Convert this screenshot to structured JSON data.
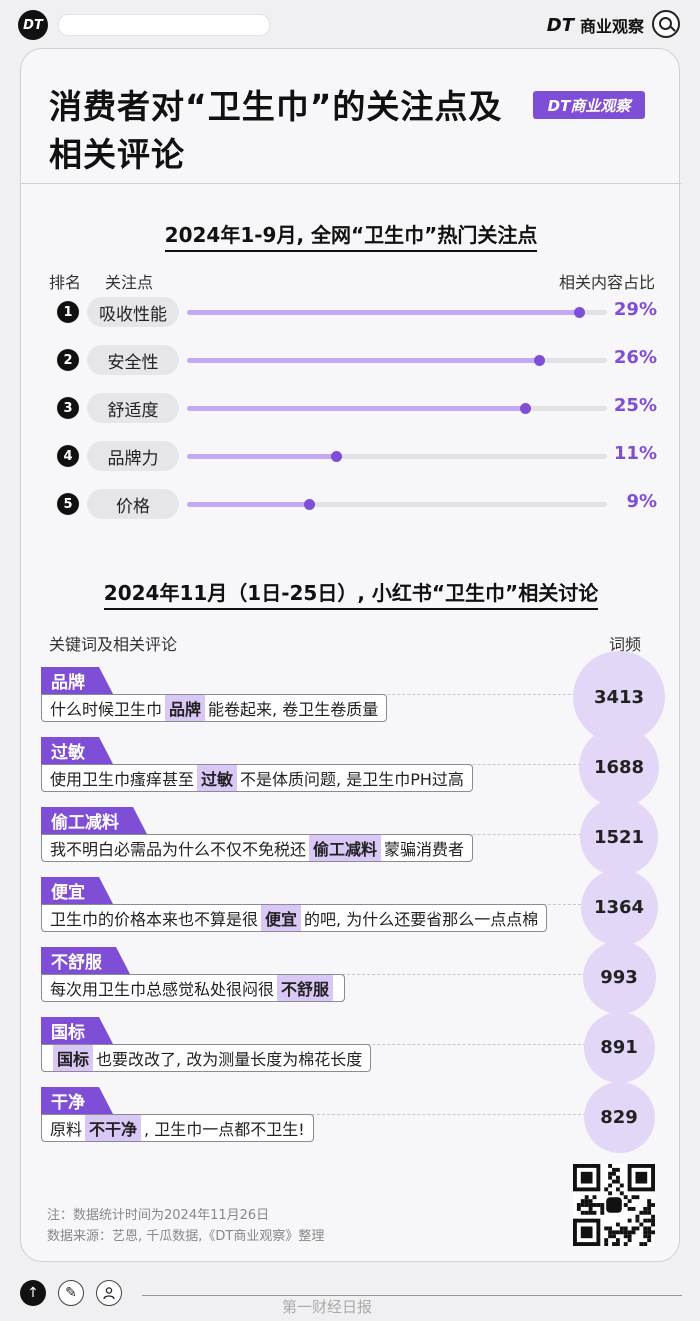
{
  "topbar": {
    "logo": "DT",
    "brand_dt": "DT",
    "brand_name": "商业观察"
  },
  "title": "消费者对“卫生巾”的关注点及相关评论",
  "badge": "DT商业观察",
  "section1": {
    "title": "2024年1-9月, 全网“卫生巾”热门关注点",
    "col_rank": "排名",
    "col_focus": "关注点",
    "col_share": "相关内容占比"
  },
  "section2": {
    "title": "2024年11月（1日-25日）, 小红书“卫生巾”相关讨论",
    "col_keyword": "关键词及相关评论",
    "col_freq": "词频"
  },
  "chart_data": [
    {
      "type": "bar",
      "title": "2024年1-9月, 全网“卫生巾”热门关注点",
      "categories": [
        "吸收性能",
        "安全性",
        "舒适度",
        "品牌力",
        "价格"
      ],
      "ranks": [
        "1",
        "2",
        "3",
        "4",
        "5"
      ],
      "values": [
        29,
        26,
        25,
        11,
        9
      ],
      "labels": [
        "29%",
        "26%",
        "25%",
        "11%",
        "9%"
      ],
      "unit": "%",
      "ylim": [
        0,
        30
      ]
    },
    {
      "type": "table",
      "title": "2024年11月（1日-25日）, 小红书“卫生巾”相关讨论",
      "rows": [
        {
          "keyword": "品牌",
          "before": "什么时候卫生巾",
          "highlight": "品牌",
          "after": "能卷起来, 卷卫生卷质量",
          "freq": 3413
        },
        {
          "keyword": "过敏",
          "before": "使用卫生巾瘙痒甚至",
          "highlight": "过敏",
          "after": "不是体质问题, 是卫生巾PH过高",
          "freq": 1688
        },
        {
          "keyword": "偷工减料",
          "before": "我不明白必需品为什么不仅不免税还",
          "highlight": "偷工减料",
          "after": "蒙骗消费者",
          "freq": 1521
        },
        {
          "keyword": "便宜",
          "before": "卫生巾的价格本来也不算是很",
          "highlight": "便宜",
          "after": "的吧, 为什么还要省那么一点点棉",
          "freq": 1364
        },
        {
          "keyword": "不舒服",
          "before": "每次用卫生巾总感觉私处很闷很",
          "highlight": "不舒服",
          "after": "",
          "freq": 993
        },
        {
          "keyword": "国标",
          "before": "",
          "highlight": "国标",
          "after": "也要改改了, 改为测量长度为棉花长度",
          "freq": 891
        },
        {
          "keyword": "干净",
          "before": "原料",
          "highlight": "不干净",
          "after": ", 卫生巾一点都不卫生!",
          "freq": 829
        }
      ]
    }
  ],
  "notes": {
    "note": "注：数据统计时间为2024年11月26日",
    "source": "数据来源：艺恩, 千瓜数据,《DT商业观察》整理"
  },
  "bottom": {
    "watermark": "第一财经日报"
  },
  "colors": {
    "accent": "#7e4fd6",
    "fill": "#c3a9f0",
    "bubble": "#e3d7f8",
    "highlight": "#d9c8f6"
  }
}
